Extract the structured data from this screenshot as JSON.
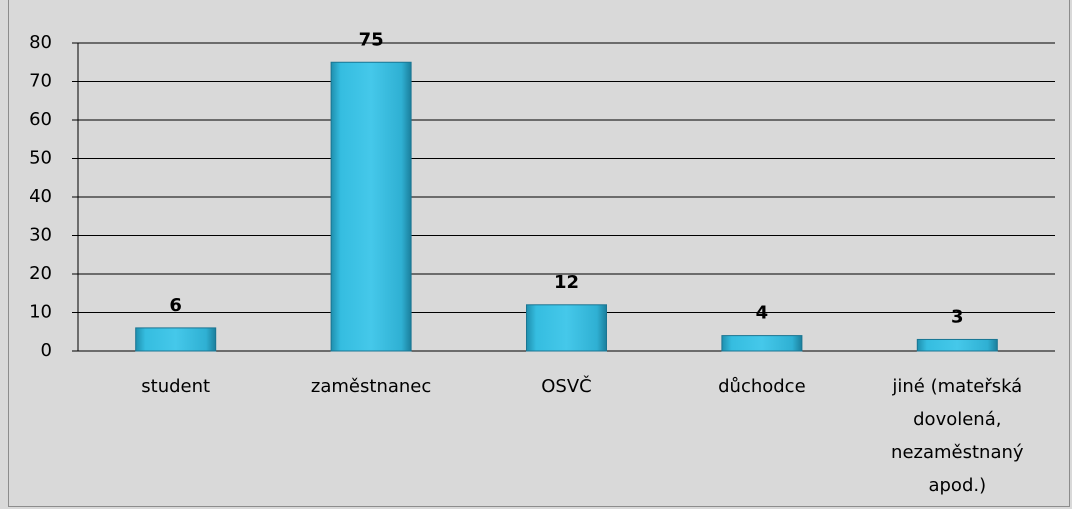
{
  "chart_data": {
    "type": "bar",
    "categories": [
      "student",
      "zaměstnanec",
      "OSVČ",
      "důchodce",
      "jiné (mateřská dovolená, nezaměstnaný apod.)"
    ],
    "values": [
      6,
      75,
      12,
      4,
      3
    ],
    "color": "#31b5d8",
    "ylim": [
      0,
      80
    ],
    "yticks": [
      0,
      10,
      20,
      30,
      40,
      50,
      60,
      70,
      80
    ],
    "grid": true
  }
}
